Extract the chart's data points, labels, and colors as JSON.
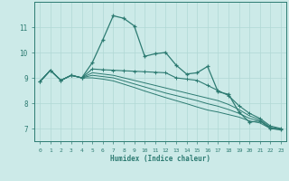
{
  "xlabel": "Humidex (Indice chaleur)",
  "xlim": [
    -0.5,
    23.5
  ],
  "ylim": [
    6.5,
    12.0
  ],
  "xticks": [
    0,
    1,
    2,
    3,
    4,
    5,
    6,
    7,
    8,
    9,
    10,
    11,
    12,
    13,
    14,
    15,
    16,
    17,
    18,
    19,
    20,
    21,
    22,
    23
  ],
  "yticks": [
    7,
    8,
    9,
    10,
    11
  ],
  "bg_color": "#cceae8",
  "line_color": "#2d7b72",
  "grid_color": "#b0d8d4",
  "line1": [
    8.85,
    9.3,
    8.9,
    9.1,
    9.0,
    9.6,
    10.5,
    11.45,
    11.35,
    11.05,
    9.85,
    9.95,
    10.0,
    9.5,
    9.15,
    9.2,
    9.45,
    8.45,
    8.35,
    7.65,
    7.25,
    7.3,
    7.0,
    6.95
  ],
  "line2": [
    8.85,
    9.3,
    8.9,
    9.1,
    9.0,
    9.35,
    9.32,
    9.3,
    9.28,
    9.26,
    9.24,
    9.22,
    9.2,
    9.0,
    8.95,
    8.9,
    8.7,
    8.5,
    8.3,
    7.9,
    7.6,
    7.4,
    7.1,
    7.0
  ],
  "line3": [
    8.85,
    9.3,
    8.9,
    9.1,
    9.0,
    9.2,
    9.15,
    9.1,
    9.0,
    8.9,
    8.8,
    8.7,
    8.6,
    8.5,
    8.4,
    8.3,
    8.2,
    8.1,
    7.95,
    7.75,
    7.5,
    7.35,
    7.05,
    6.98
  ],
  "line4": [
    8.85,
    9.3,
    8.9,
    9.1,
    9.0,
    9.1,
    9.05,
    9.0,
    8.88,
    8.76,
    8.64,
    8.52,
    8.4,
    8.3,
    8.2,
    8.1,
    7.98,
    7.88,
    7.75,
    7.6,
    7.4,
    7.3,
    7.02,
    6.97
  ],
  "line5": [
    8.85,
    9.3,
    8.9,
    9.1,
    9.0,
    9.0,
    8.95,
    8.88,
    8.75,
    8.62,
    8.48,
    8.35,
    8.22,
    8.1,
    7.98,
    7.85,
    7.73,
    7.65,
    7.55,
    7.45,
    7.3,
    7.22,
    7.0,
    6.96
  ]
}
